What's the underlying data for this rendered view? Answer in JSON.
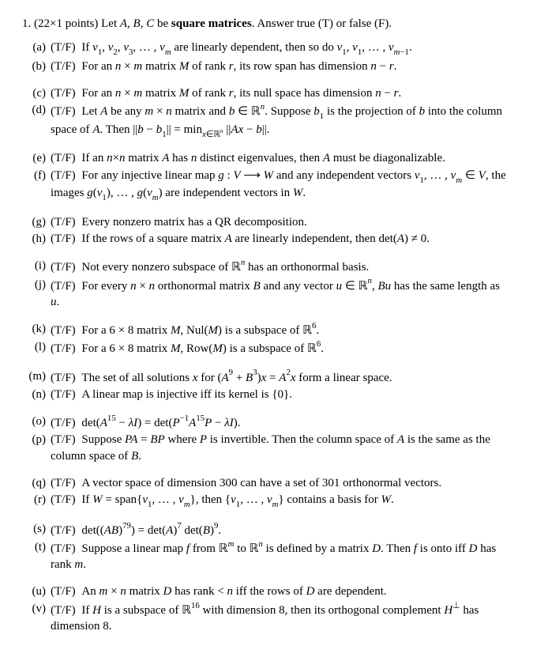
{
  "header": {
    "number": "1.",
    "points": "(22×1 points)",
    "intro_pre": "Let ",
    "intro_matrices": "A, B, C",
    "intro_mid": " be ",
    "intro_bold": "square matrices",
    "intro_post": ". Answer true (T) or false (F)."
  },
  "tf": "(T/F)",
  "items": {
    "a": {
      "label": "(a)"
    },
    "b": {
      "label": "(b)"
    },
    "c": {
      "label": "(c)"
    },
    "d": {
      "label": "(d)"
    },
    "e": {
      "label": "(e)"
    },
    "f": {
      "label": "(f)"
    },
    "g": {
      "label": "(g)"
    },
    "h": {
      "label": "(h)"
    },
    "i": {
      "label": "(i)"
    },
    "j": {
      "label": "(j)"
    },
    "k": {
      "label": "(k)"
    },
    "l": {
      "label": "(l)"
    },
    "m": {
      "label": "(m)"
    },
    "n": {
      "label": "(n)"
    },
    "o": {
      "label": "(o)"
    },
    "p": {
      "label": "(p)"
    },
    "q": {
      "label": "(q)"
    },
    "r": {
      "label": "(r)"
    },
    "s": {
      "label": "(s)"
    },
    "t": {
      "label": "(t)"
    },
    "u": {
      "label": "(u)"
    },
    "v": {
      "label": "(v)"
    }
  },
  "text": {
    "a": "If <i>v</i><sub>1</sub>, <i>v</i><sub>2</sub>, <i>v</i><sub>3</sub>, … , <i>v<sub>m</sub></i> are linearly dependent, then so do <i>v</i><sub>1</sub>, <i>v</i><sub>1</sub>, … , <i>v</i><sub><i>m</i>−1</sub>.",
    "b": "For an <i>n</i> × <i>m</i> matrix <i>M</i> of rank <i>r</i>, its row span has dimension <i>n</i> − <i>r</i>.",
    "c": "For an <i>n</i> × <i>m</i> matrix <i>M</i> of rank <i>r</i>, its null space has dimension <i>n</i> − <i>r</i>.",
    "d": "Let <i>A</i> be any <i>m</i> × <i>n</i> matrix and <i>b</i> ∈ ℝ<sup><i>n</i></sup>. Suppose <i>b</i><sub>1</sub> is the projection of <i>b</i> into the column space of <i>A</i>. Then ||<i>b</i> − <i>b</i><sub>1</sub>|| = min<sub><i>x</i>∈ℝ<sup><i>n</i></sup></sub> ||<i>Ax</i> − <i>b</i>||.",
    "e": "If an <i>n</i>×<i>n</i> matrix <i>A</i> has <i>n</i> distinct eigenvalues, then <i>A</i> must be diagonalizable.",
    "f": "For any injective linear map <i>g</i> : <i>V</i> ⟶ <i>W</i> and any independent vectors <i>v</i><sub>1</sub>, … , <i>v<sub>m</sub></i> ∈ <i>V</i>, the images <i>g</i>(<i>v</i><sub>1</sub>), … , <i>g</i>(<i>v<sub>m</sub></i>) are independent vectors in <i>W</i>.",
    "g": "Every nonzero matrix has a QR decomposition.",
    "h": "If the rows of a square matrix <i>A</i> are linearly independent, then det(<i>A</i>) ≠ 0.",
    "i": "Not every nonzero subspace of ℝ<sup><i>n</i></sup> has an orthonormal basis.",
    "j": "For every <i>n</i> × <i>n</i> orthonormal matrix <i>B</i> and any vector <i>u</i> ∈ ℝ<sup><i>n</i></sup>, <i>Bu</i> has the same length as <i>u</i>.",
    "k": "For a 6 × 8 matrix <i>M</i>, Nul(<i>M</i>) is a subspace of ℝ<sup>6</sup>.",
    "l": "For a 6 × 8 matrix <i>M</i>, Row(<i>M</i>) is a subspace of ℝ<sup>6</sup>.",
    "m": "The set of all solutions <i>x</i> for (<i>A</i><sup>9</sup> + <i>B</i><sup>3</sup>)<i>x</i> = <i>A</i><sup>2</sup><i>x</i> form a linear space.",
    "n": "A linear map is injective iff its kernel is {0}.",
    "o": "det(<i>A</i><sup>15</sup> − <i>λI</i>) = det(<i>P</i><sup>−1</sup><i>A</i><sup>15</sup><i>P</i> − <i>λI</i>).",
    "p": "Suppose <i>PA</i> = <i>BP</i> where <i>P</i> is invertible. Then the column space of <i>A</i> is the same as the column space of <i>B</i>.",
    "q": "A vector space of dimension 300 can have a set of 301 orthonormal vectors.",
    "r": "If <i>W</i> = span{<i>v</i><sub>1</sub>, … , <i>v<sub>m</sub></i>}, then {<i>v</i><sub>1</sub>, … , <i>v<sub>m</sub></i>} contains a basis for <i>W</i>.",
    "s": "det((<i>AB</i>)<sup>79</sup>) = det(<i>A</i>)<sup>7</sup> det(<i>B</i>)<sup>9</sup>.",
    "t": "Suppose a linear map <i>f</i> from ℝ<sup><i>m</i></sup> to ℝ<sup><i>n</i></sup> is defined by a matrix <i>D</i>. Then <i>f</i> is onto iff <i>D</i> has rank <i>m</i>.",
    "u": "An <i>m</i> × <i>n</i> matrix <i>D</i> has rank &lt; <i>n</i> iff the rows of <i>D</i> are dependent.",
    "v": "If <i>H</i> is a subspace of ℝ<sup>16</sup> with dimension 8, then its orthogonal complement <i>H</i><sup>⊥</sup> has dimension 8."
  }
}
